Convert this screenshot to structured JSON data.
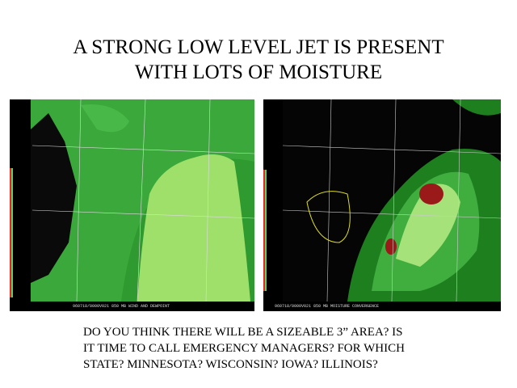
{
  "header": {
    "title_lines": [
      "A STRONG LOW LEVEL JET IS PRESENT",
      "WITH LOTS OF MOISTURE"
    ]
  },
  "images": [
    {
      "caption": "960718/0000V021 850 MB WIND AND DEWPOINT"
    },
    {
      "caption": "960718/0000V021 850 MB MOISTURE CONVERGENCE"
    }
  ],
  "body": {
    "lines": [
      "DO YOU THINK THERE WILL BE A SIZEABLE 3” AREA? IS",
      "IT TIME TO CALL EMERGENCY MANAGERS? FOR WHICH",
      "STATE? MINNESOTA? WISCONSIN? IOWA? ILLINOIS?"
    ]
  }
}
